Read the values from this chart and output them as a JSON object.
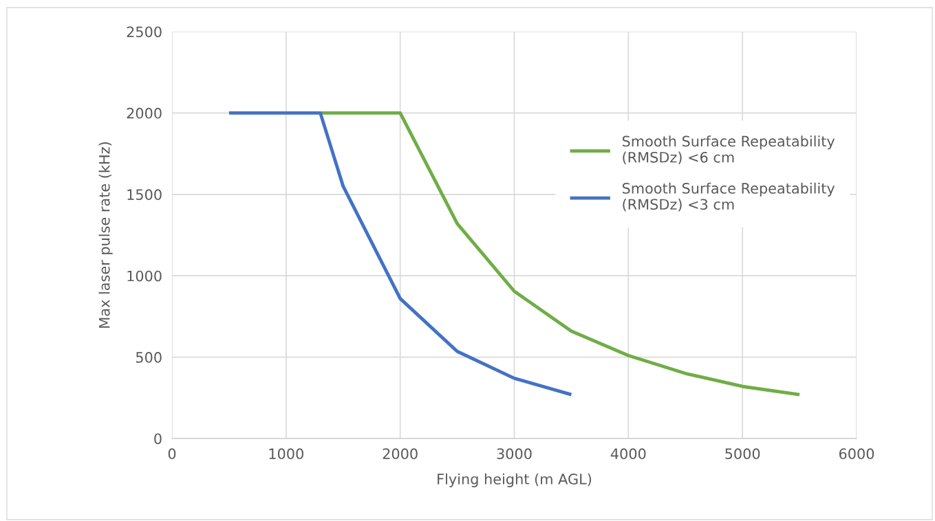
{
  "chart_data": {
    "type": "line",
    "xlabel": "Flying height (m AGL)",
    "ylabel": "Max laser pulse rate (kHz)",
    "xlim": [
      0,
      6000
    ],
    "xticks": [
      0,
      1000,
      2000,
      3000,
      4000,
      5000,
      6000
    ],
    "ylim": [
      0,
      2500
    ],
    "yticks": [
      0,
      500,
      1000,
      1500,
      2000,
      2500
    ],
    "grid": true,
    "legend": "right",
    "marker": "none",
    "line_style": "solid",
    "series": [
      {
        "name": "Smooth Surface Repeatability\n(RMSDz) <6 cm",
        "color": "#70ad47",
        "x": [
          1300,
          2000,
          2500,
          3000,
          3500,
          4000,
          4500,
          5000,
          5500
        ],
        "values": [
          2000,
          2000,
          1320,
          905,
          660,
          510,
          400,
          320,
          270
        ]
      },
      {
        "name": "Smooth Surface Repeatability\n(RMSDz) <3 cm",
        "color": "#4472c4",
        "x": [
          500,
          1300,
          1500,
          2000,
          2500,
          3000,
          3500
        ],
        "values": [
          2000,
          2000,
          1550,
          860,
          535,
          370,
          270
        ]
      }
    ]
  }
}
